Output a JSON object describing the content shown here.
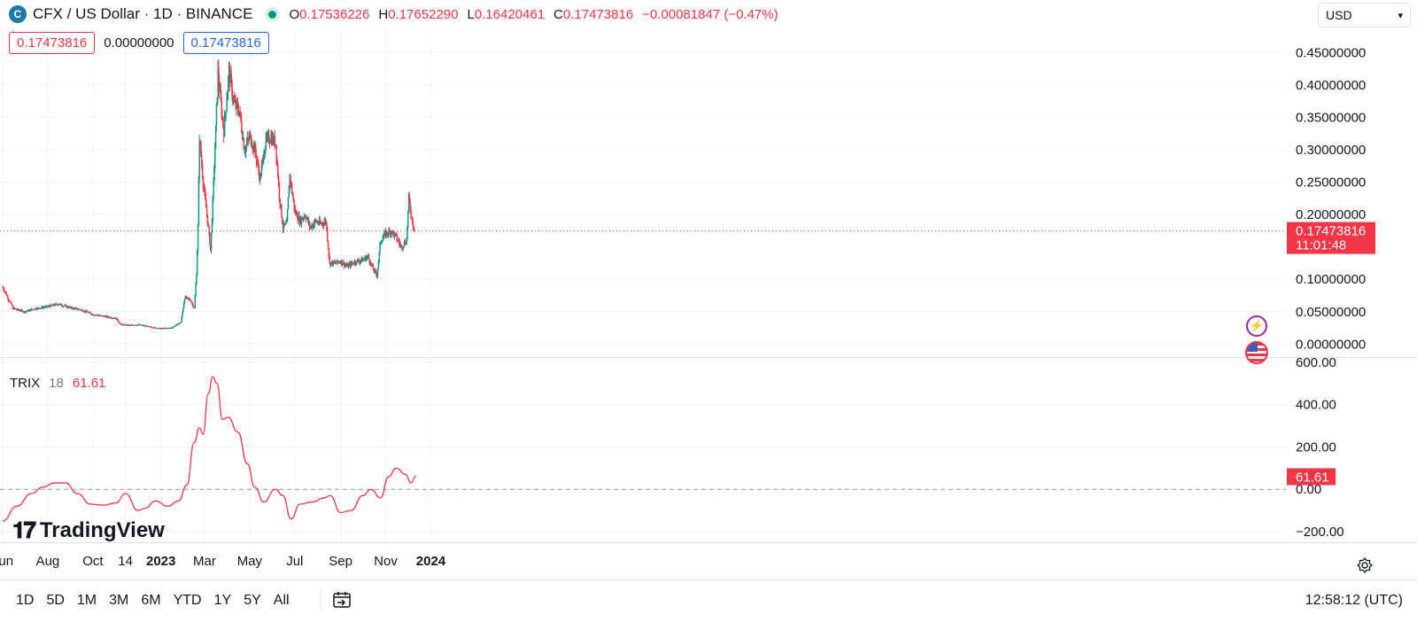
{
  "header": {
    "coin_icon": "C",
    "symbol_title": "CFX / US Dollar · 1D · BINANCE",
    "ohlc": [
      {
        "label": "O",
        "value": "0.17536226"
      },
      {
        "label": "H",
        "value": "0.17652290"
      },
      {
        "label": "L",
        "value": "0.16420461"
      },
      {
        "label": "C",
        "value": "0.17473816"
      }
    ],
    "change": "−0.00081847 (−0.47%)"
  },
  "price_tags": {
    "last": "0.17473816",
    "zero": "0.00000000",
    "close": "0.17473816"
  },
  "currency_select": {
    "value": "USD"
  },
  "indicator": {
    "name": "TRIX",
    "period": "18",
    "value": "61.61"
  },
  "logo_text": "TradingView",
  "bottom": {
    "ranges": [
      "1D",
      "5D",
      "1M",
      "3M",
      "6M",
      "YTD",
      "1Y",
      "5Y",
      "All"
    ],
    "clock": "12:58:12 (UTC)"
  },
  "colors": {
    "up": "#089981",
    "down": "#f23645",
    "trix": "#f23645",
    "grid": "#f0f3fa"
  },
  "chart_data": [
    {
      "type": "candlestick",
      "title": "CFX / US Dollar · 1D · BINANCE",
      "y_ticks": [
        "0.45000000",
        "0.40000000",
        "0.35000000",
        "0.30000000",
        "0.25000000",
        "0.20000000",
        "0.10000000",
        "0.05000000",
        "0.00000000"
      ],
      "ylim": [
        -0.02,
        0.49
      ],
      "x_ticks": [
        "Jun",
        "Aug",
        "Oct",
        "14",
        "2023",
        "Mar",
        "May",
        "Jul",
        "Sep",
        "Nov",
        "2024"
      ],
      "last_price": "0.17473816",
      "last_price_countdown": "11:01:48",
      "price_path": [
        [
          "2022-06-01",
          0.088
        ],
        [
          "2022-06-15",
          0.055
        ],
        [
          "2022-07-01",
          0.05
        ],
        [
          "2022-07-15",
          0.055
        ],
        [
          "2022-08-01",
          0.058
        ],
        [
          "2022-08-15",
          0.062
        ],
        [
          "2022-09-01",
          0.056
        ],
        [
          "2022-09-15",
          0.053
        ],
        [
          "2022-10-01",
          0.046
        ],
        [
          "2022-10-15",
          0.043
        ],
        [
          "2022-11-01",
          0.04
        ],
        [
          "2022-11-08",
          0.03
        ],
        [
          "2022-11-20",
          0.029
        ],
        [
          "2022-12-01",
          0.03
        ],
        [
          "2022-12-15",
          0.027
        ],
        [
          "2023-01-01",
          0.024
        ],
        [
          "2023-01-15",
          0.025
        ],
        [
          "2023-01-28",
          0.034
        ],
        [
          "2023-02-02",
          0.072
        ],
        [
          "2023-02-10",
          0.068
        ],
        [
          "2023-02-15",
          0.055
        ],
        [
          "2023-02-18",
          0.11
        ],
        [
          "2023-02-20",
          0.18
        ],
        [
          "2023-02-22",
          0.32
        ],
        [
          "2023-02-27",
          0.25
        ],
        [
          "2023-03-05",
          0.19
        ],
        [
          "2023-03-09",
          0.145
        ],
        [
          "2023-03-12",
          0.22
        ],
        [
          "2023-03-16",
          0.33
        ],
        [
          "2023-03-19",
          0.42
        ],
        [
          "2023-03-23",
          0.37
        ],
        [
          "2023-03-27",
          0.33
        ],
        [
          "2023-04-03",
          0.42
        ],
        [
          "2023-04-10",
          0.37
        ],
        [
          "2023-04-17",
          0.36
        ],
        [
          "2023-04-24",
          0.3
        ],
        [
          "2023-05-01",
          0.32
        ],
        [
          "2023-05-08",
          0.3
        ],
        [
          "2023-05-15",
          0.255
        ],
        [
          "2023-05-22",
          0.31
        ],
        [
          "2023-05-29",
          0.32
        ],
        [
          "2023-06-05",
          0.31
        ],
        [
          "2023-06-10",
          0.23
        ],
        [
          "2023-06-15",
          0.18
        ],
        [
          "2023-06-20",
          0.185
        ],
        [
          "2023-06-24",
          0.26
        ],
        [
          "2023-07-01",
          0.205
        ],
        [
          "2023-07-08",
          0.19
        ],
        [
          "2023-07-15",
          0.2
        ],
        [
          "2023-07-22",
          0.18
        ],
        [
          "2023-07-29",
          0.19
        ],
        [
          "2023-08-05",
          0.185
        ],
        [
          "2023-08-12",
          0.19
        ],
        [
          "2023-08-17",
          0.125
        ],
        [
          "2023-08-24",
          0.125
        ],
        [
          "2023-09-01",
          0.128
        ],
        [
          "2023-09-10",
          0.12
        ],
        [
          "2023-09-20",
          0.127
        ],
        [
          "2023-10-01",
          0.13
        ],
        [
          "2023-10-08",
          0.135
        ],
        [
          "2023-10-15",
          0.115
        ],
        [
          "2023-10-20",
          0.107
        ],
        [
          "2023-10-25",
          0.16
        ],
        [
          "2023-11-01",
          0.17
        ],
        [
          "2023-11-08",
          0.175
        ],
        [
          "2023-11-15",
          0.165
        ],
        [
          "2023-11-22",
          0.15
        ],
        [
          "2023-11-29",
          0.16
        ],
        [
          "2023-12-02",
          0.225
        ],
        [
          "2023-12-06",
          0.195
        ],
        [
          "2023-12-10",
          0.175
        ]
      ]
    },
    {
      "type": "line",
      "series": [
        {
          "name": "TRIX 18"
        }
      ],
      "y_ticks": [
        "600.00",
        "400.00",
        "200.00",
        "0.00",
        "−200.00"
      ],
      "ylim": [
        -250,
        620
      ],
      "zero_line": true,
      "points": [
        [
          "2022-06-01",
          -150
        ],
        [
          "2022-06-20",
          -80
        ],
        [
          "2022-07-10",
          -20
        ],
        [
          "2022-07-25",
          10
        ],
        [
          "2022-08-10",
          30
        ],
        [
          "2022-08-25",
          30
        ],
        [
          "2022-09-10",
          -20
        ],
        [
          "2022-09-28",
          -70
        ],
        [
          "2022-10-15",
          -75
        ],
        [
          "2022-11-01",
          -65
        ],
        [
          "2022-11-14",
          -20
        ],
        [
          "2022-12-01",
          -100
        ],
        [
          "2022-12-10",
          -90
        ],
        [
          "2022-12-25",
          -55
        ],
        [
          "2023-01-10",
          -80
        ],
        [
          "2023-01-25",
          -55
        ],
        [
          "2023-02-05",
          20
        ],
        [
          "2023-02-15",
          220
        ],
        [
          "2023-02-22",
          290
        ],
        [
          "2023-02-27",
          260
        ],
        [
          "2023-03-06",
          450
        ],
        [
          "2023-03-12",
          530
        ],
        [
          "2023-03-18",
          500
        ],
        [
          "2023-03-25",
          330
        ],
        [
          "2023-04-02",
          340
        ],
        [
          "2023-04-15",
          270
        ],
        [
          "2023-04-28",
          120
        ],
        [
          "2023-05-08",
          10
        ],
        [
          "2023-05-20",
          -60
        ],
        [
          "2023-06-05",
          0
        ],
        [
          "2023-06-15",
          -30
        ],
        [
          "2023-06-26",
          -140
        ],
        [
          "2023-07-08",
          -70
        ],
        [
          "2023-07-25",
          -60
        ],
        [
          "2023-08-10",
          -40
        ],
        [
          "2023-08-18",
          -30
        ],
        [
          "2023-09-01",
          -110
        ],
        [
          "2023-09-15",
          -100
        ],
        [
          "2023-10-01",
          -30
        ],
        [
          "2023-10-12",
          0
        ],
        [
          "2023-10-25",
          -40
        ],
        [
          "2023-11-05",
          60
        ],
        [
          "2023-11-15",
          100
        ],
        [
          "2023-11-28",
          70
        ],
        [
          "2023-12-05",
          30
        ],
        [
          "2023-12-12",
          61.61
        ]
      ],
      "last_value": "61.61"
    }
  ]
}
